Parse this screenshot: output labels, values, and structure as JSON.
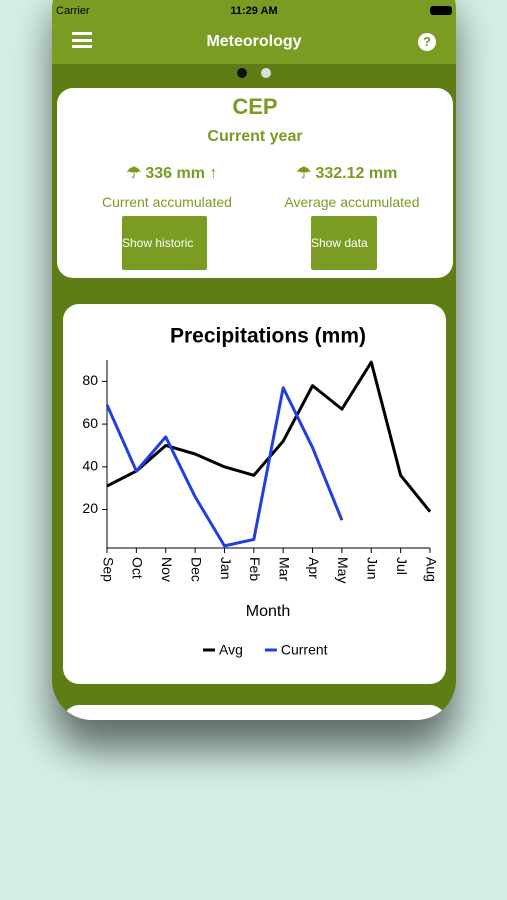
{
  "status_bar": {
    "carrier": "Carrier",
    "time": "11:29 AM"
  },
  "header": {
    "title": "Meteorology",
    "help": "?"
  },
  "summary": {
    "station": "CEP",
    "period": "Current year",
    "current": {
      "value": "336 mm",
      "label": "Current accumulated"
    },
    "average": {
      "value": "332.12 mm",
      "label": "Average accumulated"
    },
    "buttons": [
      "Show historic",
      "Show data"
    ]
  },
  "chart_data": {
    "type": "line",
    "title": "Precipitations (mm)",
    "x_label": "Month",
    "categories": [
      "Sep",
      "Oct",
      "Nov",
      "Dec",
      "Jan",
      "Feb",
      "Mar",
      "Apr",
      "May",
      "Jun",
      "Jul",
      "Aug"
    ],
    "series": [
      {
        "name": "Avg",
        "color": "#000000",
        "values": [
          31,
          38,
          50,
          46,
          40,
          36,
          52,
          78,
          67,
          89,
          36,
          19
        ]
      },
      {
        "name": "Current",
        "color": "#1f3fe0",
        "values": [
          69,
          38,
          54,
          26,
          3,
          6,
          77,
          49,
          15,
          null,
          null,
          null
        ]
      }
    ],
    "ylim": [
      2,
      90
    ],
    "yticks": [
      20,
      40,
      60,
      80
    ]
  }
}
